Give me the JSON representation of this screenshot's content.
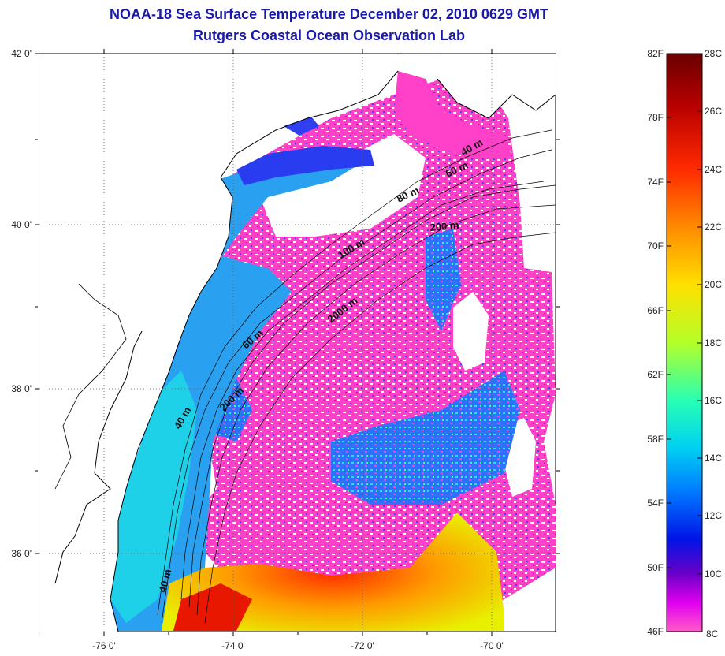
{
  "title": {
    "line1": "NOAA-18 Sea Surface Temperature December 02, 2010 0629 GMT",
    "line2": "Rutgers Coastal Ocean Observation Lab"
  },
  "map": {
    "lat_labels": [
      "42 0'",
      "40 0'",
      "38 0'",
      "36 0'"
    ],
    "lon_labels": [
      "-76 0'",
      "-74 0'",
      "-72 0'",
      "-70 0'"
    ],
    "isobath_labels": [
      "40 m",
      "60 m",
      "80 m",
      "200 m",
      "100 m",
      "2000 m",
      "60 m",
      "200 m",
      "40 m",
      "40 m"
    ]
  },
  "colorbar": {
    "fahrenheit_labels": [
      "82F",
      "78F",
      "74F",
      "70F",
      "66F",
      "62F",
      "58F",
      "54F",
      "50F",
      "46F"
    ],
    "celsius_labels": [
      "28C",
      "26C",
      "24C",
      "22C",
      "20C",
      "18C",
      "16C",
      "14C",
      "12C",
      "10C",
      "8C"
    ],
    "colors": [
      "#7a0000",
      "#c40000",
      "#ff3a00",
      "#ff8c00",
      "#ffd000",
      "#e6ff00",
      "#9cff3a",
      "#3cff9c",
      "#00e6e6",
      "#0096ff",
      "#0028ff",
      "#1e00c8",
      "#a000c8",
      "#ff00ff",
      "#ff60c0"
    ]
  }
}
